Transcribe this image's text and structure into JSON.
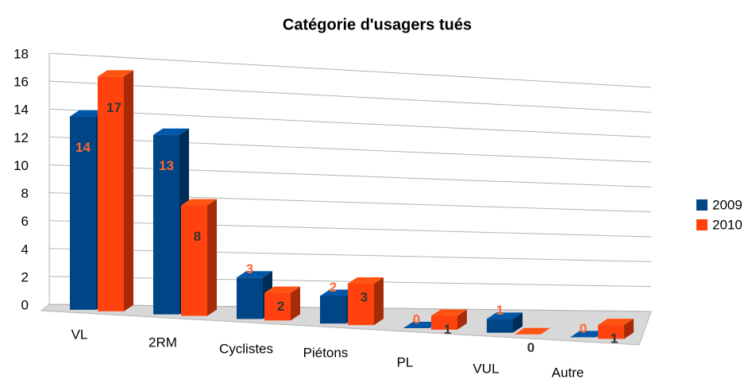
{
  "chart_data": {
    "type": "bar3d",
    "title": "Catégorie d'usagers tués",
    "categories": [
      "VL",
      "2RM",
      "Cyclistes",
      "Piétons",
      "PL",
      "VUL",
      "Autre"
    ],
    "series": [
      {
        "name": "2009",
        "color": "#004586",
        "values": [
          14,
          13,
          3,
          2,
          0,
          1,
          0
        ]
      },
      {
        "name": "2010",
        "color": "#ff420e",
        "values": [
          17,
          8,
          2,
          3,
          1,
          0,
          1
        ]
      }
    ],
    "ylim": [
      0,
      18
    ],
    "yticks": [
      0,
      2,
      4,
      6,
      8,
      10,
      12,
      14,
      16,
      18
    ],
    "grid": true,
    "legend": "right"
  }
}
